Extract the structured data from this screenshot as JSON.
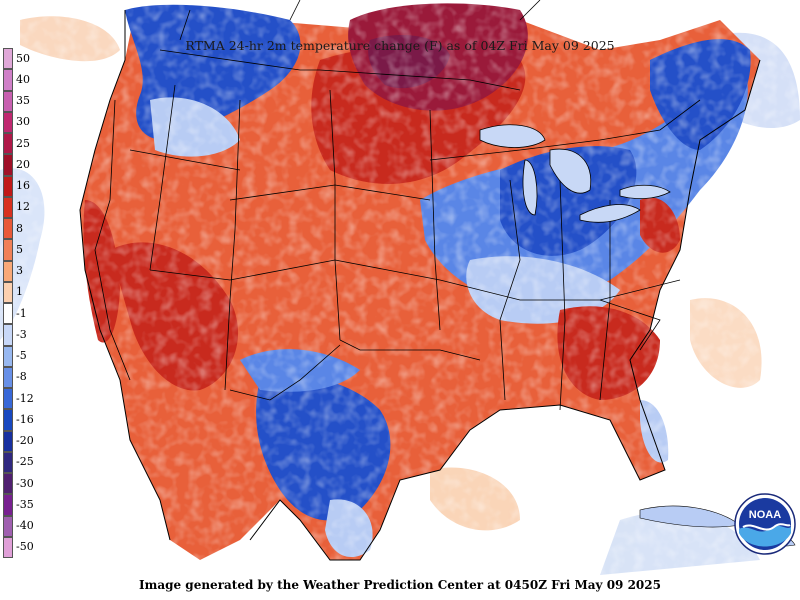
{
  "title": "RTMA 24-hr 2m temperature change (F) as of 04Z Fri May 09 2025",
  "footer": "Image generated by the Weather Prediction Center at 0450Z Fri May 09 2025",
  "logo_text": "NOAA",
  "legend": {
    "levels": [
      "50",
      "40",
      "35",
      "30",
      "25",
      "20",
      "16",
      "12",
      "8",
      "5",
      "3",
      "1",
      "-1",
      "-3",
      "-5",
      "-8",
      "-12",
      "-16",
      "-20",
      "-25",
      "-30",
      "-35",
      "-40",
      "-50"
    ],
    "colors": [
      "#e0a8d8",
      "#d080c8",
      "#c860b0",
      "#c02870",
      "#b01848",
      "#a01028",
      "#c01818",
      "#d83020",
      "#e85838",
      "#f08058",
      "#f8a878",
      "#fcd0b0",
      "#ffffff",
      "#c8d8f8",
      "#98b8f0",
      "#6890e8",
      "#3868d8",
      "#1848c0",
      "#1830a0",
      "#302880",
      "#502070",
      "#782090",
      "#a060b0",
      "#e0a0d8"
    ]
  },
  "colors": {
    "warm_strong": "#c82a1e",
    "warm": "#e8603a",
    "warm_light": "#f6a77a",
    "cool_light": "#b8ccf4",
    "cool": "#5a86e6",
    "cool_strong": "#2450c8",
    "extreme_warm": "#9a1a3a",
    "extreme_warm_core": "#7a1a48",
    "neutral": "#ffffff",
    "borders": "#000000"
  }
}
